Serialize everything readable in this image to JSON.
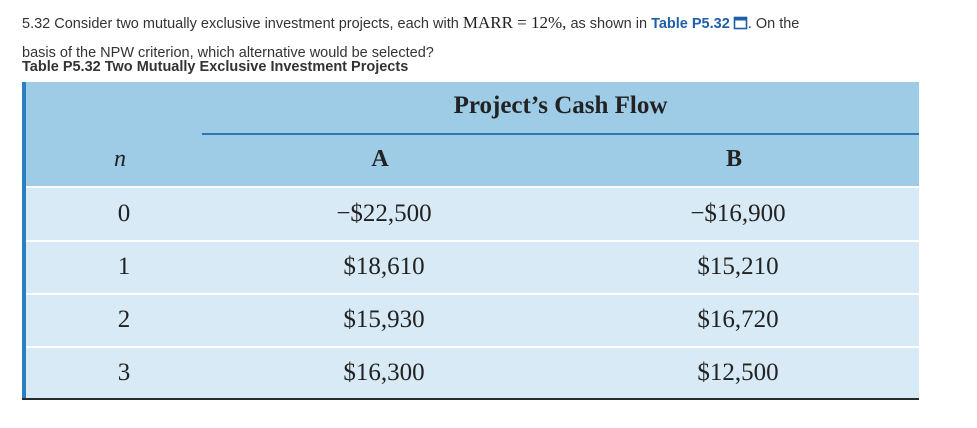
{
  "question": {
    "prefix": "5.32 Consider two mutually exclusive investment projects, each with ",
    "math": "MARR = 12%,",
    "middle": " as shown in ",
    "link": "Table P5.32",
    "suffix_line1": ". On the",
    "line2": "basis of the NPW criterion, which alternative would be selected?"
  },
  "caption": "Table P5.32 Two Mutually Exclusive Investment Projects",
  "table": {
    "group_title": "Project’s Cash Flow",
    "headers": {
      "n": "n",
      "a": "A",
      "b": "B"
    },
    "rows": [
      {
        "n": "0",
        "a": "−$22,500",
        "b": "−$16,900"
      },
      {
        "n": "1",
        "a": "$18,610",
        "b": "$15,210"
      },
      {
        "n": "2",
        "a": "$15,930",
        "b": "$16,720"
      },
      {
        "n": "3",
        "a": "$16,300",
        "b": "$12,500"
      }
    ]
  },
  "colors": {
    "header_band": "#9ecbe6",
    "body": "#d7eaf5",
    "accent": "#2b7fc1",
    "link": "#1f5fa8"
  },
  "icons": {
    "link_icon": "external-window-icon"
  }
}
